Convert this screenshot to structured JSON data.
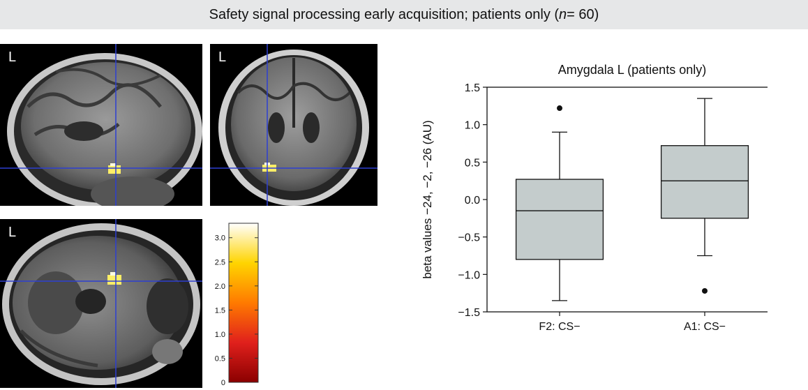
{
  "header": {
    "title_before": "Safety signal processing early acquisition; patients only (",
    "title_n": "n",
    "title_after": " = 60)"
  },
  "brain_panels": {
    "sagittal_label": "L",
    "coronal_label": "L",
    "axial_label": "L"
  },
  "colorbar": {
    "ticks": [
      "3.0",
      "2.5",
      "2.0",
      "1.5",
      "1.0",
      "0.5",
      "0"
    ],
    "tick_values": [
      3.0,
      2.5,
      2.0,
      1.5,
      1.0,
      0.5,
      0
    ],
    "max_value": 3.3,
    "colors": [
      "#8b0000",
      "#e0201c",
      "#ff7a00",
      "#ffd400",
      "#ffffff"
    ]
  },
  "chart_data": {
    "type": "box",
    "title": "Amygdala L (patients only)",
    "ylabel": "beta values −24, −2, −26 (AU)",
    "xlabel": "",
    "ylim": [
      -1.5,
      1.5
    ],
    "yticks": [
      1.5,
      1.0,
      0.5,
      0.0,
      -0.5,
      -1.0,
      -1.5
    ],
    "ytick_labels": [
      "1.5",
      "1.0",
      "0.5",
      "0.0",
      "−0.5",
      "−1.0",
      "−1.5"
    ],
    "categories": [
      "F2: CS−",
      "A1: CS−"
    ],
    "boxes": [
      {
        "whisker_low": -1.35,
        "q1": -0.8,
        "median": -0.15,
        "q3": 0.27,
        "whisker_high": 0.9,
        "outliers": [
          1.22
        ]
      },
      {
        "whisker_low": -0.75,
        "q1": -0.25,
        "median": 0.25,
        "q3": 0.72,
        "whisker_high": 1.35,
        "outliers": [
          -1.22
        ]
      }
    ],
    "box_color": "#c4cccc",
    "grid": false
  }
}
